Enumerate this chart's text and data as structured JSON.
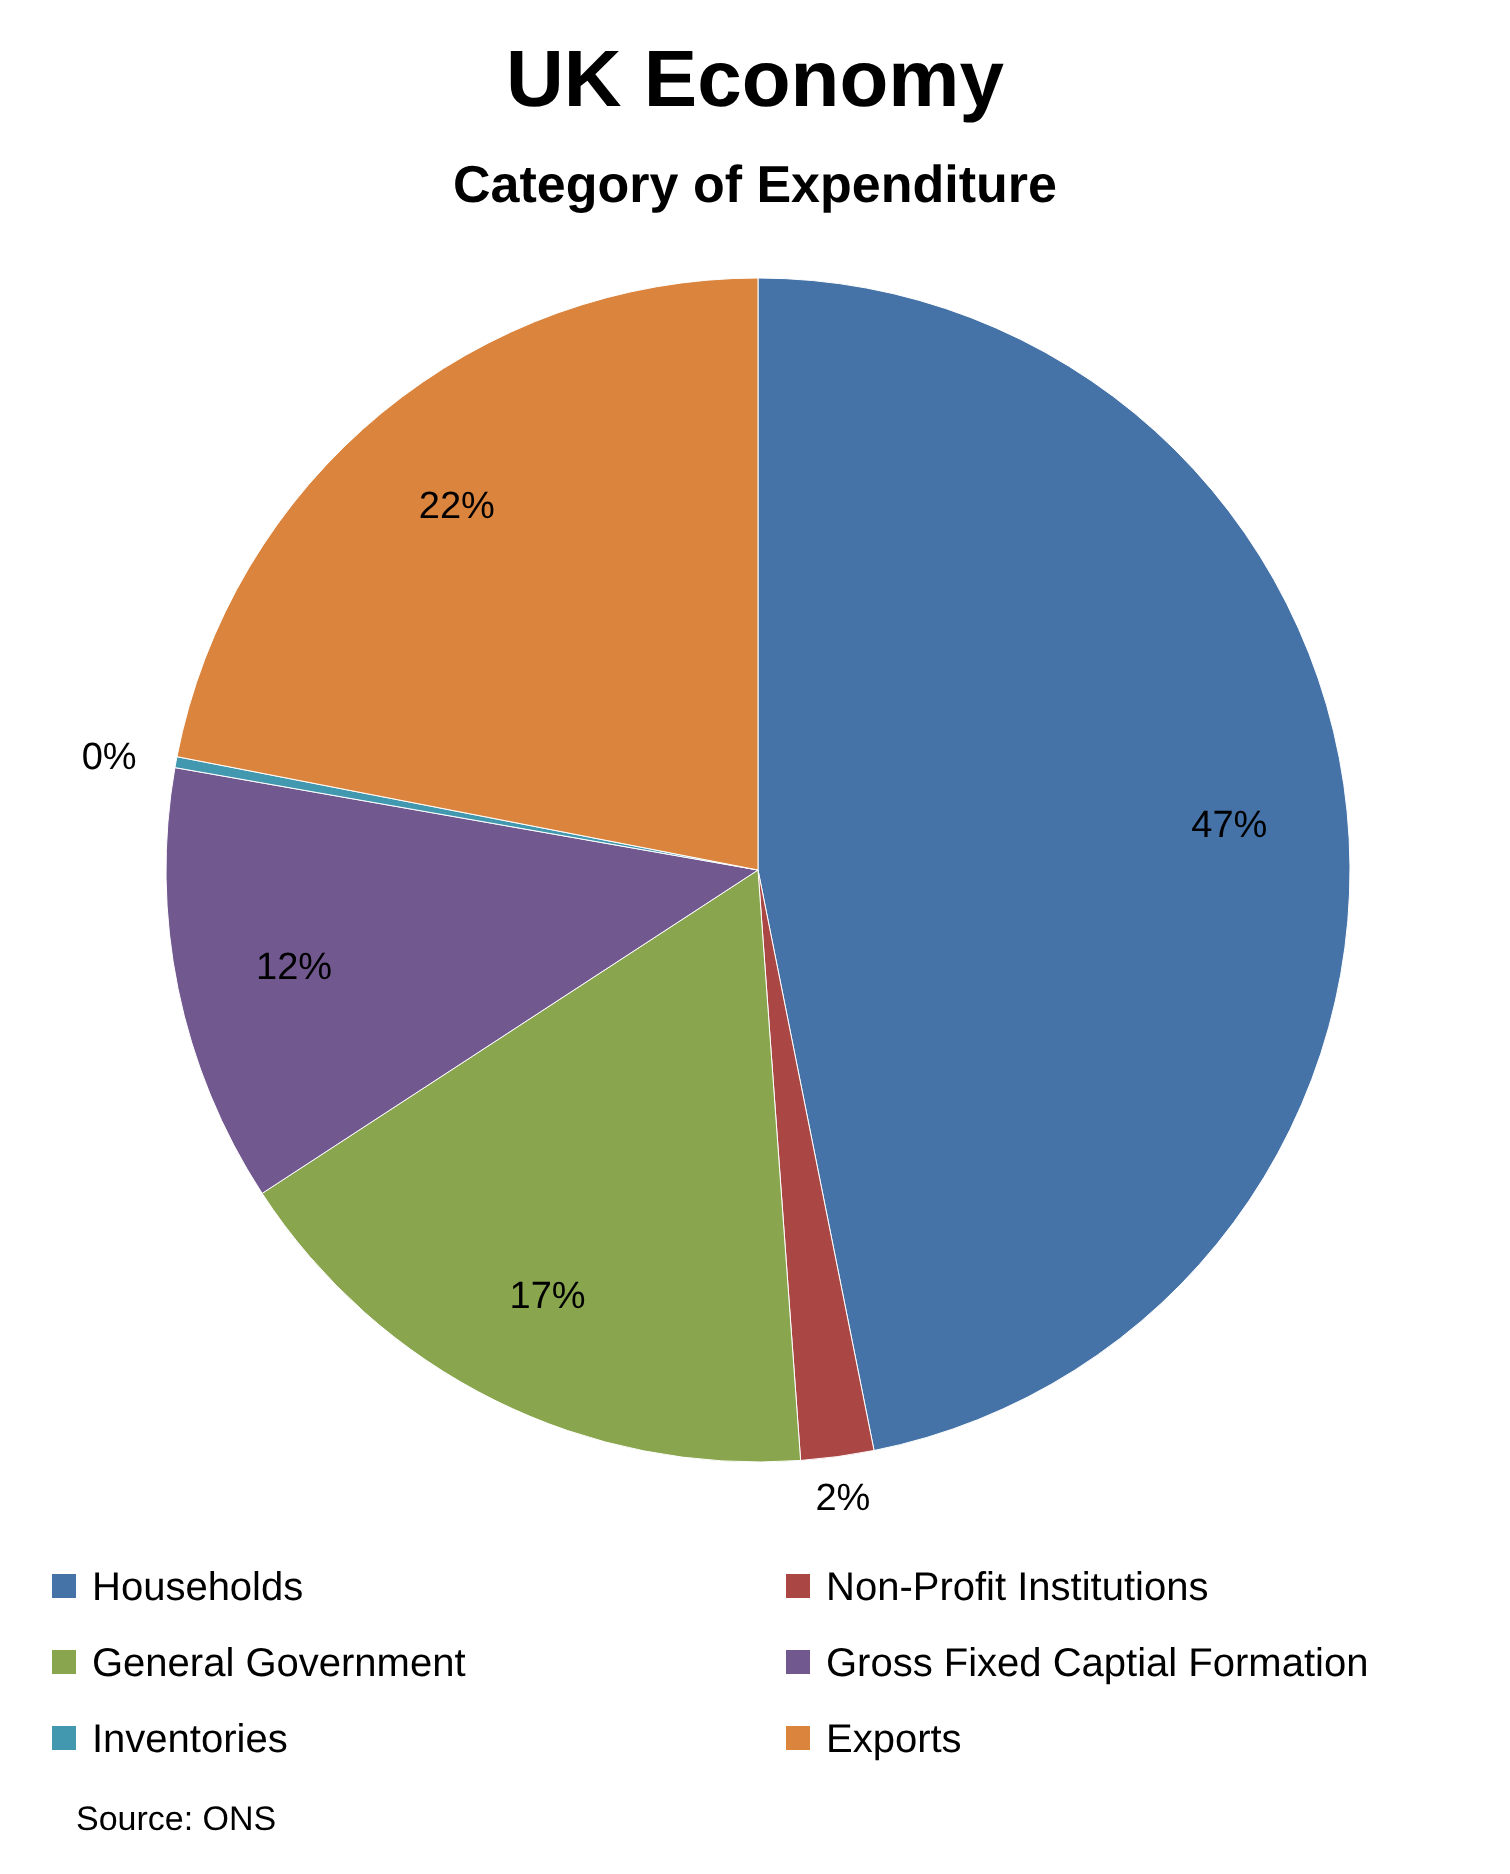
{
  "chart_data": {
    "type": "pie",
    "title": "UK Economy",
    "subtitle": "Category of Expenditure",
    "categories": [
      "Households",
      "Non-Profit Institutions",
      "General Government",
      "Gross Fixed Captial Formation",
      "Inventories",
      "Exports"
    ],
    "values": [
      47,
      2,
      17,
      12,
      0.3,
      22
    ],
    "value_labels": [
      "47%",
      "2%",
      "17%",
      "12%",
      "0%",
      "22%"
    ],
    "colors": [
      "#4572a7",
      "#aa4643",
      "#89a54e",
      "#71588f",
      "#4198af",
      "#db843d"
    ],
    "legend": "bottom",
    "annotations": [
      "Source: ONS"
    ]
  }
}
